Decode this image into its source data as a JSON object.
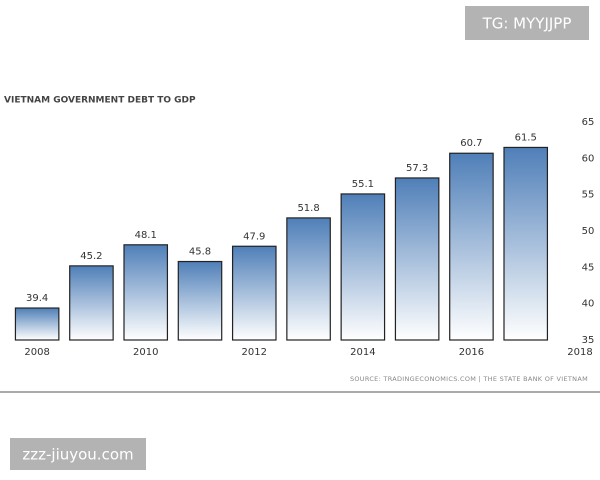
{
  "chart_data": {
    "type": "bar",
    "title": "VIETNAM GOVERNMENT DEBT TO GDP",
    "source": "SOURCE: TRADINGECONOMICS.COM | THE STATE BANK OF VIETNAM",
    "x": [
      2008,
      2009,
      2010,
      2011,
      2012,
      2013,
      2014,
      2015,
      2016,
      2017
    ],
    "values": [
      39.4,
      45.2,
      48.1,
      45.8,
      47.9,
      51.8,
      55.1,
      57.3,
      60.7,
      61.5
    ],
    "color": "#4f7fb8",
    "xlim": [
      2007.5,
      2018
    ],
    "xticks": [
      2008,
      2010,
      2012,
      2014,
      2016,
      2018
    ],
    "ylim": [
      35,
      65
    ],
    "yticks": [
      35,
      40,
      45,
      50,
      55,
      60,
      65
    ],
    "grid": false
  },
  "watermark_top": "TG: MYYJJPP",
  "watermark_bottom": "zzz-jiuyou.com"
}
